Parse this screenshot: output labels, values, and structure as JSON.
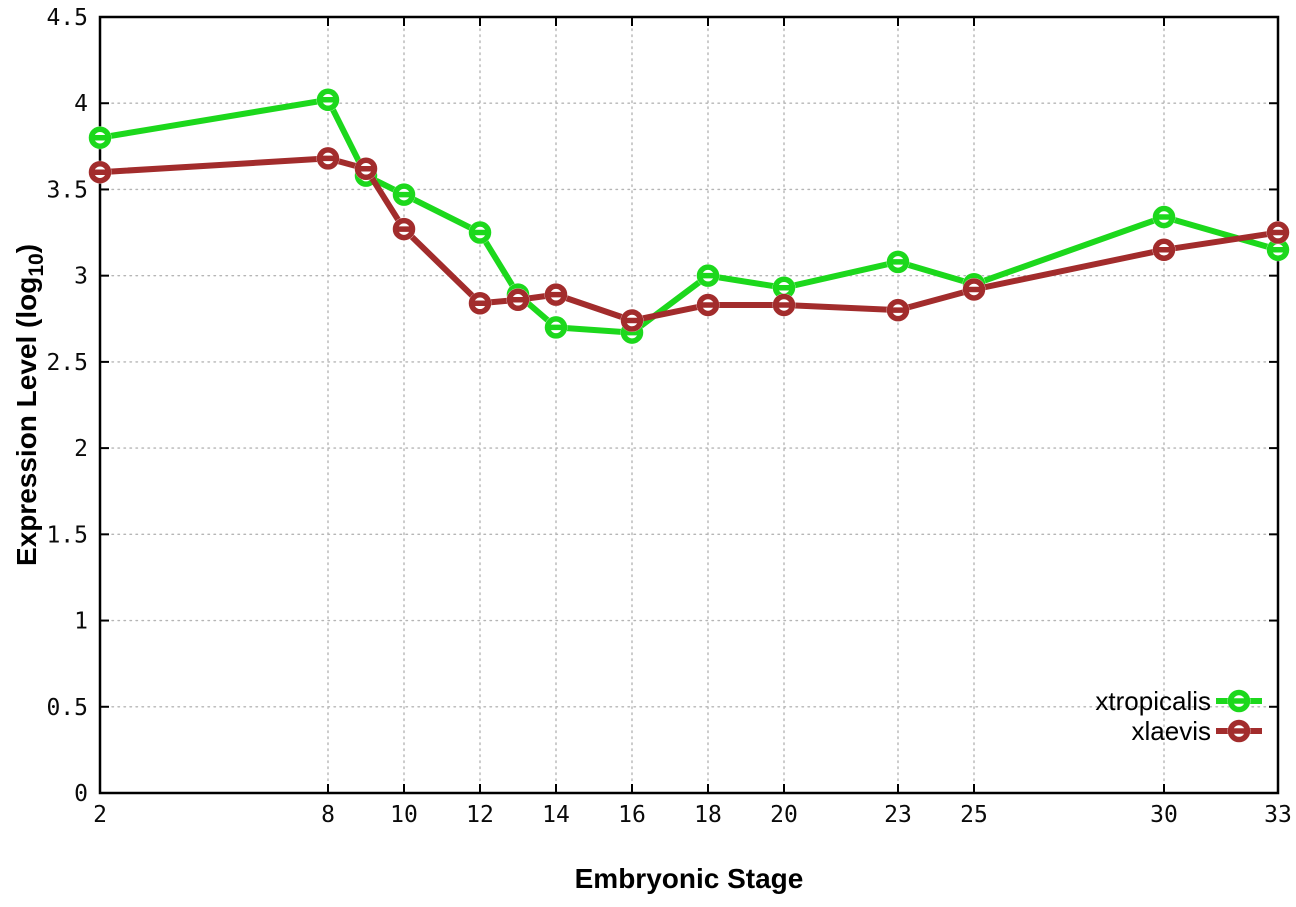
{
  "chart_data": {
    "type": "line",
    "title": "",
    "xlabel": "Embryonic Stage",
    "ylabel": "Expression Level (log10)",
    "ylabel_parts": {
      "main": "Expression Level (log",
      "sub": "10",
      "end": ")"
    },
    "xlim": [
      2,
      33
    ],
    "ylim": [
      0,
      4.5
    ],
    "grid": true,
    "legend_position": "bottom-right",
    "xticks": [
      2,
      8,
      10,
      12,
      14,
      16,
      18,
      20,
      23,
      25,
      30,
      33
    ],
    "xtick_labels": [
      "2",
      "8",
      "10",
      "12",
      "14",
      "16",
      "18",
      "20",
      "23",
      "25",
      "30",
      "33"
    ],
    "yticks": [
      0,
      0.5,
      1,
      1.5,
      2,
      2.5,
      3,
      3.5,
      4,
      4.5
    ],
    "ytick_labels": [
      "0",
      "0.5",
      "1",
      "1.5",
      "2",
      "2.5",
      "3",
      "3.5",
      "4",
      "4.5"
    ],
    "x": [
      2,
      8,
      9,
      10,
      12,
      13,
      14,
      16,
      18,
      20,
      23,
      25,
      30,
      33
    ],
    "series": [
      {
        "name": "xtropicalis",
        "color": "#1cd81c",
        "values": [
          3.8,
          4.02,
          3.58,
          3.47,
          3.25,
          2.89,
          2.7,
          2.67,
          3.0,
          2.93,
          3.08,
          2.95,
          3.34,
          3.15
        ]
      },
      {
        "name": "xlaevis",
        "color": "#a22c2c",
        "values": [
          3.6,
          3.68,
          3.62,
          3.27,
          2.84,
          2.86,
          2.89,
          2.74,
          2.83,
          2.83,
          2.8,
          2.92,
          3.15,
          3.25
        ]
      }
    ],
    "colors": {
      "background": "#ffffff",
      "axis": "#000000",
      "grid": "#b5b5b5"
    }
  }
}
